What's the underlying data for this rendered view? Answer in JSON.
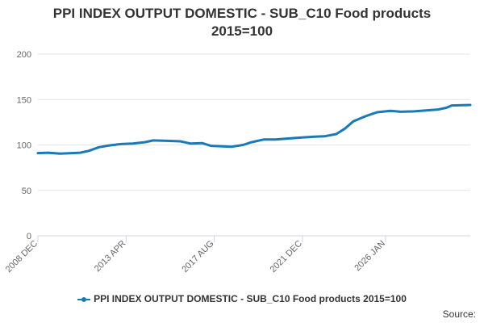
{
  "chart_data": {
    "type": "line",
    "title": "PPI INDEX OUTPUT DOMESTIC - SUB_C10 Food products",
    "subtitle": "2015=100",
    "xlabel": "",
    "ylabel": "",
    "ylim": [
      0,
      200
    ],
    "yticks": [
      "0",
      "50",
      "100",
      "150",
      "200"
    ],
    "xticks": [
      {
        "label": "2008 DEC",
        "x": "2008-12"
      },
      {
        "label": "2013 APR",
        "x": "2013-04"
      },
      {
        "label": "2017 AUG",
        "x": "2017-08"
      },
      {
        "label": "2021 DEC",
        "x": "2021-12"
      },
      {
        "label": "2026 JAN",
        "x": "2026-01"
      }
    ],
    "grid": "horizontal",
    "legend_position": "bottom",
    "series": [
      {
        "name": "PPI INDEX OUTPUT DOMESTIC - SUB_C10 Food products 2015=100",
        "color": "#1a7ab8",
        "points": [
          [
            "2008-12",
            91.0
          ],
          [
            "2009-06",
            91.5
          ],
          [
            "2010-01",
            90.5
          ],
          [
            "2010-08",
            91.0
          ],
          [
            "2011-01",
            91.5
          ],
          [
            "2011-06",
            93.5
          ],
          [
            "2011-12",
            97.5
          ],
          [
            "2012-06",
            99.5
          ],
          [
            "2013-01",
            101.0
          ],
          [
            "2013-08",
            101.5
          ],
          [
            "2014-03",
            103.0
          ],
          [
            "2014-08",
            105.0
          ],
          [
            "2015-04",
            104.5
          ],
          [
            "2015-12",
            104.0
          ],
          [
            "2016-06",
            101.5
          ],
          [
            "2017-01",
            102.0
          ],
          [
            "2017-06",
            99.0
          ],
          [
            "2018-01",
            98.5
          ],
          [
            "2018-06",
            98.0
          ],
          [
            "2019-01",
            100.0
          ],
          [
            "2019-06",
            103.0
          ],
          [
            "2020-01",
            106.0
          ],
          [
            "2020-08",
            106.0
          ],
          [
            "2021-03",
            107.0
          ],
          [
            "2021-10",
            108.0
          ],
          [
            "2022-06",
            109.0
          ],
          [
            "2023-01",
            109.5
          ],
          [
            "2023-08",
            112.0
          ],
          [
            "2024-01",
            118.0
          ],
          [
            "2024-06",
            126.0
          ],
          [
            "2025-01",
            131.5
          ],
          [
            "2025-08",
            136.0
          ],
          [
            "2026-04",
            137.5
          ],
          [
            "2026-10",
            136.5
          ],
          [
            "2027-06",
            137.0
          ],
          [
            "2028-01",
            138.0
          ],
          [
            "2028-08",
            139.0
          ],
          [
            "2029-01",
            141.0
          ],
          [
            "2029-04",
            143.5
          ],
          [
            "2030-03",
            144.0
          ]
        ]
      }
    ],
    "source_label": "Source:"
  }
}
